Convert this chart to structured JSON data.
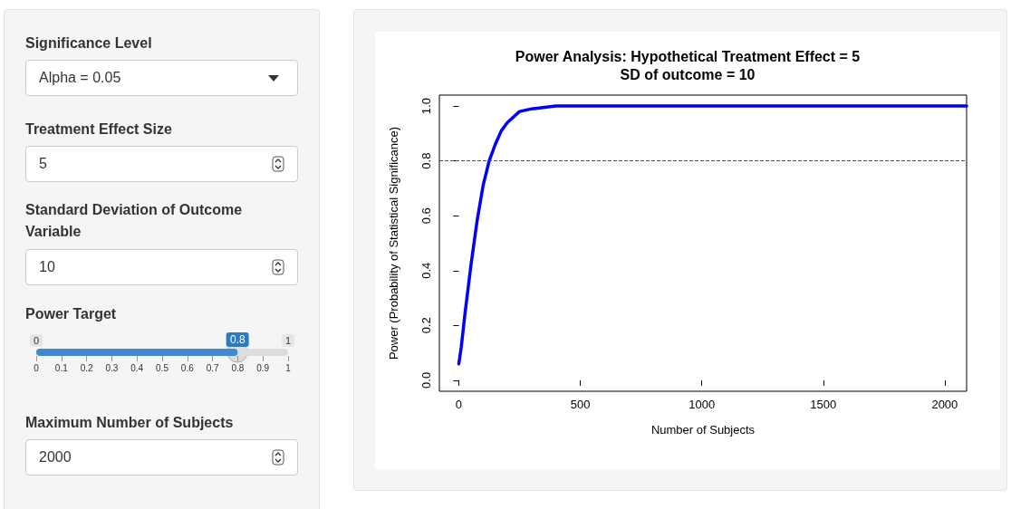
{
  "chart_data": [
    {
      "type": "other",
      "annotations": [
        "Significance Level",
        "Alpha = 0.05",
        "Treatment Effect Size",
        "5",
        "Standard Deviation of Outcome Variable",
        "10",
        "Power Target",
        "Maximum Number of Subjects",
        "2000"
      ]
    },
    {
      "type": "bar",
      "orientation": "horizontal",
      "categories": [
        null
      ],
      "values": [
        0.8
      ],
      "value_labels": [
        "0.8"
      ],
      "color": "#428bca",
      "xlim": [
        0,
        1
      ],
      "xticks": [
        0,
        0.1,
        0.2,
        0.3,
        0.4,
        0.5,
        0.6,
        0.7,
        0.8,
        0.9,
        1
      ],
      "annotations": [
        "0",
        "1"
      ]
    },
    {
      "type": "line",
      "title": "Power Analysis: Hypothetical Treatment Effect = 5",
      "subtitle": "SD of outcome = 10",
      "xlabel": "Number of Subjects",
      "ylabel": "Power (Probability of Statistical Significance)",
      "x": [
        0,
        10,
        25,
        50,
        75,
        100,
        125,
        150,
        175,
        200,
        250,
        300,
        400,
        500,
        1000,
        1500,
        2090
      ],
      "series": [
        {
          "color": "#0000ff",
          "values": [
            0.06,
            0.12,
            0.24,
            0.42,
            0.58,
            0.71,
            0.8,
            0.86,
            0.91,
            0.94,
            0.98,
            0.99,
            1.0,
            1.0,
            1.0,
            1.0,
            1.0
          ]
        }
      ],
      "xlim": [
        -80,
        2090
      ],
      "xticks": [
        0,
        500,
        1000,
        1500,
        2000
      ],
      "ylim": [
        -0.04,
        1.04
      ],
      "yticks": [
        {
          "value": 0,
          "label": "0.0"
        },
        0.2,
        0.4,
        0.6,
        0.8,
        {
          "value": 1,
          "label": "1.0"
        }
      ],
      "ref_lines": [
        {
          "axis": "y",
          "value": 0.8,
          "color": "#ff0000",
          "line_style": "dashed"
        }
      ],
      "grid": false,
      "marker": "none",
      "line_style": "solid"
    }
  ]
}
